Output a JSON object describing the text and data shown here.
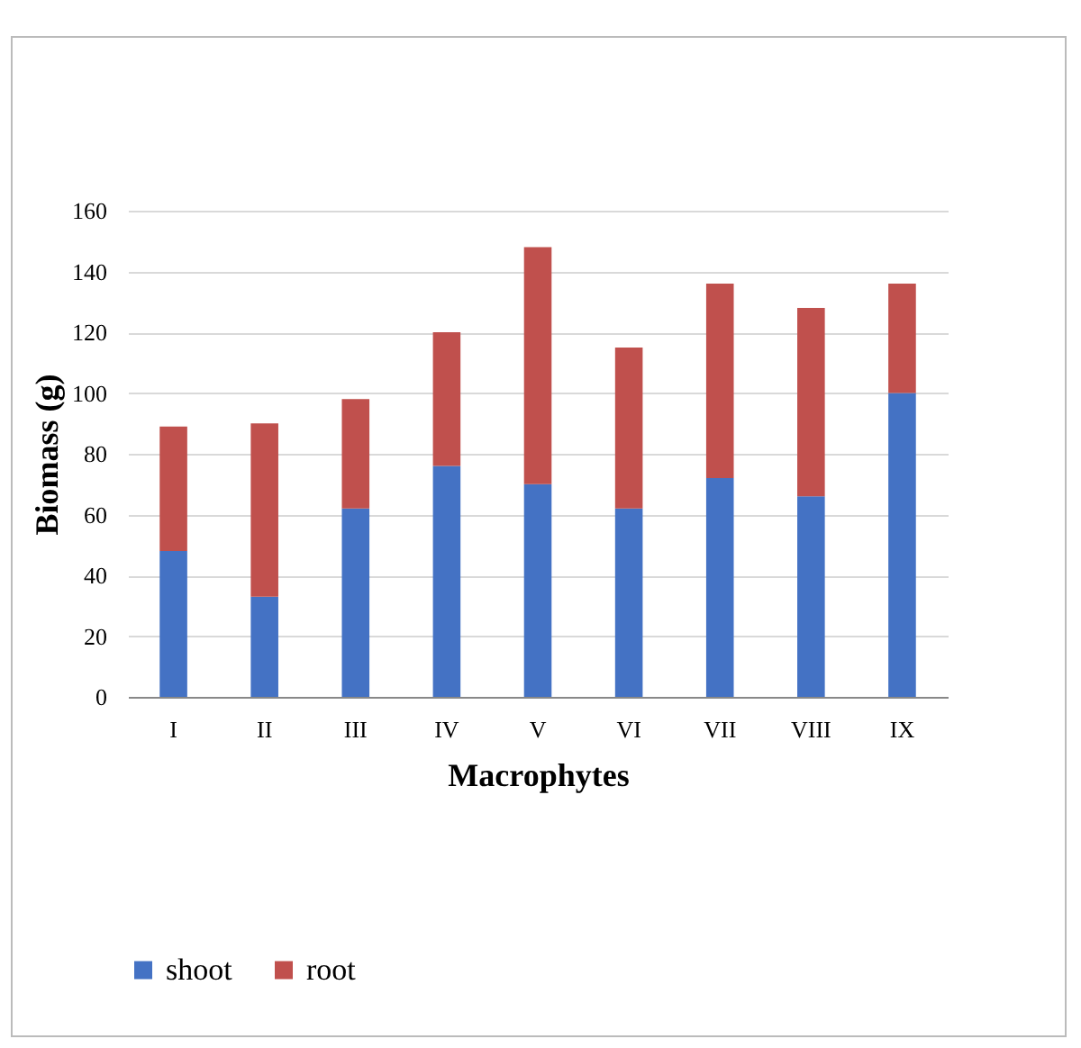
{
  "chart_data": {
    "type": "bar",
    "stacked": true,
    "xlabel": "Macrophytes",
    "ylabel": "Biomass (g)",
    "categories": [
      "I",
      "II",
      "III",
      "IV",
      "V",
      "VI",
      "VII",
      "VIII",
      "IX"
    ],
    "series": [
      {
        "name": "shoot",
        "color": "#4472c4",
        "values": [
          48,
          33,
          62,
          76,
          70,
          62,
          72,
          66,
          100
        ]
      },
      {
        "name": "root",
        "color": "#c0504d",
        "values": [
          41,
          57,
          36,
          44,
          78,
          53,
          64,
          62,
          36
        ]
      }
    ],
    "ylim": [
      0,
      160
    ],
    "yticks": [
      0,
      20,
      40,
      60,
      80,
      100,
      120,
      140,
      160
    ],
    "grid": "y",
    "legend": "bottom"
  }
}
